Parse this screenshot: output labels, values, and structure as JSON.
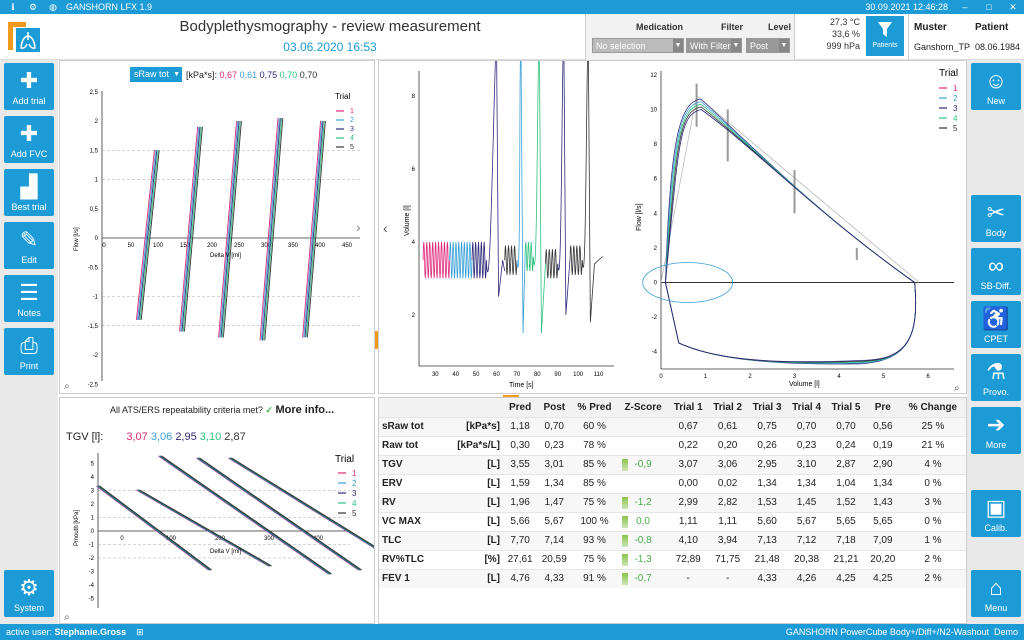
{
  "titlebar": {
    "app": "GANSHORN LFX 1.9",
    "datetime": "30.09.2021 12:46:28"
  },
  "header": {
    "title": "Bodyplethysmography - review measurement",
    "date": "03.06.2020 16:53"
  },
  "filters": {
    "medication_label": "Medication",
    "medication_value": "No selection",
    "filter_label": "Filter",
    "filter_value": "With Filter",
    "level_label": "Level",
    "level_value": "Post"
  },
  "env": {
    "temp": "27,3 °C",
    "humidity": "33,6 %",
    "pressure": "999 hPa"
  },
  "patients_button": "Patients",
  "patient": {
    "muster_label": "Muster",
    "patient_label": "Patient",
    "name": "Ganshorn_TP",
    "dob": "08.06.1984"
  },
  "leftbar": [
    "Add trial",
    "Add FVC",
    "Best trial",
    "Edit",
    "Notes",
    "Print"
  ],
  "system_button": "System",
  "rightbar": [
    "New",
    "Body",
    "SB-Diff.",
    "CPET",
    "Provo.",
    "More"
  ],
  "calib_button": "Calib.",
  "menu_button": "Menu",
  "sraw_panel": {
    "dropdown": "sRaw tot",
    "unit": "[kPa*s]:",
    "values": [
      "0,67",
      "0,61",
      "0,75",
      "0,70",
      "0,70"
    ],
    "xlabel": "Delta V [ml]",
    "ylabel": "Flow [l/s]",
    "legend_title": "Trial",
    "trials": [
      "1",
      "2",
      "3",
      "4",
      "5"
    ],
    "xticks": [
      "0",
      "50",
      "100",
      "150",
      "200",
      "250",
      "300",
      "350",
      "400",
      "450"
    ],
    "yticks": [
      "2,5",
      "2",
      "1,5",
      "1",
      "0,5",
      "0",
      "-0,5",
      "-1",
      "-1,5",
      "-2",
      "-2,5"
    ]
  },
  "tgv_panel": {
    "question": "All ATS/ERS repeatability criteria met?",
    "more_info": "More info...",
    "tgv_label": "TGV [l]:",
    "values": [
      "3,07",
      "3,06",
      "2,95",
      "3,10",
      "2,87"
    ],
    "xlabel": "Delta V [ml]",
    "ylabel": "Pmouth [kPa]",
    "legend_title": "Trial",
    "trials": [
      "1",
      "2",
      "3",
      "4",
      "5"
    ],
    "xticks": [
      "0",
      "100",
      "200",
      "300",
      "400"
    ],
    "yticks": [
      "5",
      "4",
      "3",
      "2",
      "1",
      "0",
      "-1",
      "-2",
      "-3",
      "-4",
      "-5"
    ]
  },
  "vt_panel": {
    "xlabel": "Time [s]",
    "ylabel": "Volume [l]",
    "xticks": [
      "30",
      "40",
      "50",
      "60",
      "70",
      "80",
      "90",
      "100",
      "110"
    ],
    "yticks": [
      "8",
      "6",
      "4",
      "2"
    ]
  },
  "fv_panel": {
    "xlabel": "Volume [l]",
    "ylabel": "Flow [l/s]",
    "legend_title": "Trial",
    "trials": [
      "1",
      "2",
      "3",
      "4",
      "5"
    ],
    "xticks": [
      "0",
      "1",
      "2",
      "3",
      "4",
      "5",
      "6"
    ],
    "yticks": [
      "12",
      "10",
      "8",
      "6",
      "4",
      "2",
      "0",
      "-2",
      "-4"
    ]
  },
  "colors": {
    "t1": "#e0287a",
    "t2": "#3aa0d8",
    "t3": "#2e2a7a",
    "t4": "#2ec27e",
    "t5": "#333333",
    "accent": "#1d9bd6"
  },
  "table": {
    "headers": [
      "",
      "",
      "Pred",
      "Post",
      "% Pred",
      "Z-Score",
      "Trial 1",
      "Trial 2",
      "Trial 3",
      "Trial 4",
      "Trial 5",
      "Pre",
      "% Change"
    ],
    "rows": [
      {
        "p": "sRaw tot",
        "u": "[kPa*s]",
        "pred": "1,18",
        "post": "0,70",
        "pp": "60 %",
        "z": "",
        "t1": "0,67",
        "t2": "0,61",
        "t3": "0,75",
        "t4": "0,70",
        "t5": "0,70",
        "pre": "0,56",
        "ch": "25 %"
      },
      {
        "p": "Raw tot",
        "u": "[kPa*s/L]",
        "pred": "0,30",
        "post": "0,23",
        "pp": "78 %",
        "z": "",
        "t1": "0,22",
        "t2": "0,20",
        "t3": "0,26",
        "t4": "0,23",
        "t5": "0,24",
        "pre": "0,19",
        "ch": "21 %"
      },
      {
        "p": "TGV",
        "u": "[L]",
        "pred": "3,55",
        "post": "3,01",
        "pp": "85 %",
        "z": "-0,9",
        "t1": "3,07",
        "t2": "3,06",
        "t3": "2,95",
        "t4": "3,10",
        "t5": "2,87",
        "pre": "2,90",
        "ch": "4 %"
      },
      {
        "p": "ERV",
        "u": "[L]",
        "pred": "1,59",
        "post": "1,34",
        "pp": "85 %",
        "z": "",
        "t1": "0,00",
        "t2": "0,02",
        "t3": "1,34",
        "t4": "1,34",
        "t5": "1,04",
        "pre": "1,34",
        "ch": "0 %"
      },
      {
        "p": "RV",
        "u": "[L]",
        "pred": "1,96",
        "post": "1,47",
        "pp": "75 %",
        "z": "-1,2",
        "t1": "2,99",
        "t2": "2,82",
        "t3": "1,53",
        "t4": "1,45",
        "t5": "1,52",
        "pre": "1,43",
        "ch": "3 %"
      },
      {
        "p": "VC MAX",
        "u": "[L]",
        "pred": "5,66",
        "post": "5,67",
        "pp": "100 %",
        "z": "0,0",
        "t1": "1,11",
        "t2": "1,11",
        "t3": "5,60",
        "t4": "5,67",
        "t5": "5,65",
        "pre": "5,65",
        "ch": "0 %"
      },
      {
        "p": "TLC",
        "u": "[L]",
        "pred": "7,70",
        "post": "7,14",
        "pp": "93 %",
        "z": "-0,8",
        "t1": "4,10",
        "t2": "3,94",
        "t3": "7,13",
        "t4": "7,12",
        "t5": "7,18",
        "pre": "7,09",
        "ch": "1 %"
      },
      {
        "p": "RV%TLC",
        "u": "[%]",
        "pred": "27,61",
        "post": "20,59",
        "pp": "75 %",
        "z": "-1,3",
        "t1": "72,89",
        "t2": "71,75",
        "t3": "21,48",
        "t4": "20,38",
        "t5": "21,21",
        "pre": "20,20",
        "ch": "2 %"
      },
      {
        "p": "FEV 1",
        "u": "[L]",
        "pred": "4,76",
        "post": "4,33",
        "pp": "91 %",
        "z": "-0,7",
        "t1": "-",
        "t2": "-",
        "t3": "4,33",
        "t4": "4,26",
        "t5": "4,25",
        "pre": "4,25",
        "ch": "2 %"
      }
    ]
  },
  "status": {
    "user_label": "active user:",
    "user": "Stephanie.Gross",
    "device": "GANSHORN PowerCube Body+/Diff+/N2-Washout",
    "mode": "Demo"
  }
}
